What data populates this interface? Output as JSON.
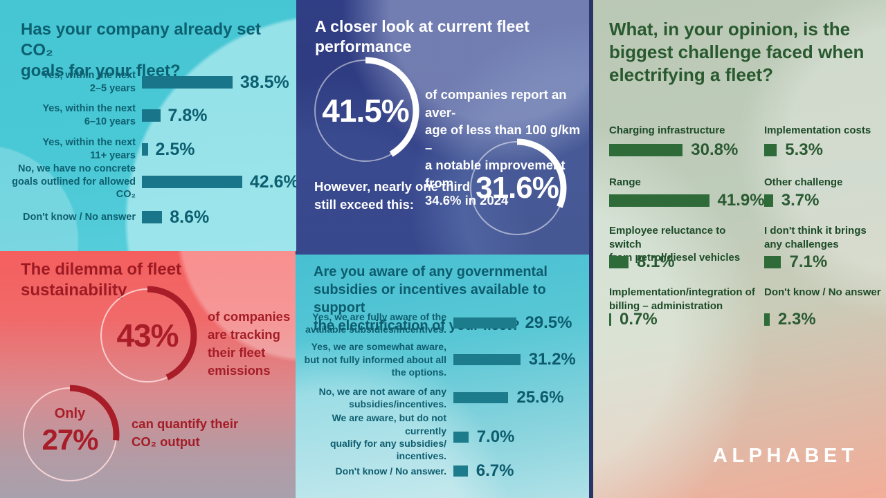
{
  "brand": {
    "logo": "ALPHABET"
  },
  "colors": {
    "cyan_bg": "#47c6d4",
    "dark_blue_bg": "#2d3a7c",
    "red_bg": "#f4605f",
    "green_bg": "#bfccba",
    "salmon_bg": "#f2ad98",
    "teal_bar": "#19768a",
    "teal_text": "#0c5f70",
    "green_bar": "#2e6b38",
    "green_text": "#29592f",
    "red_accent": "#a81d28",
    "white": "#ffffff"
  },
  "chart_data": [
    {
      "id": "co2_goals",
      "type": "bar",
      "orientation": "horizontal",
      "unit": "%",
      "title": "Has your company already set CO₂\ngoals for your fleet?",
      "categories": [
        "Yes, within the next\n2–5 years",
        "Yes, within the next\n6–10 years",
        "Yes, within the next\n11+ years",
        "No, we have no concrete\ngoals outlined for allowed CO₂",
        "Don't know / No answer"
      ],
      "values": [
        38.5,
        7.8,
        2.5,
        42.6,
        8.6
      ],
      "value_labels": [
        "38.5%",
        "7.8%",
        "2.5%",
        "42.6%",
        "8.6%"
      ]
    },
    {
      "id": "fleet_performance",
      "type": "pie",
      "style": "donut-gauges",
      "title": "A closer look at current fleet\nperformance",
      "gauges": [
        {
          "value": 41.5,
          "label": "41.5%",
          "desc": "of companies report an aver-\nage of less than 100 g/km –\na notable improvement from\n34.6% in 2024"
        },
        {
          "value": 31.6,
          "label": "31.6%"
        }
      ],
      "note": "However, nearly one third\nstill exceed this:"
    },
    {
      "id": "challenges",
      "type": "bar",
      "orientation": "horizontal",
      "unit": "%",
      "layout": "two-column",
      "title": "What, in your opinion, is the\nbiggest challenge faced when\nelectrifying a fleet?",
      "categories": [
        "Charging infrastructure",
        "Implementation costs",
        "Range",
        "Other challenge",
        "Employee reluctance to switch\nfrom petrol/diesel vehicles",
        "I don't think it brings\nany challenges",
        "Implementation/integration of\nbilling – administration",
        "Don't know / No answer"
      ],
      "values": [
        30.8,
        5.3,
        41.9,
        3.7,
        8.1,
        7.1,
        0.7,
        2.3
      ],
      "value_labels": [
        "30.8%",
        "5.3%",
        "41.9%",
        "3.7%",
        "8.1%",
        "7.1%",
        "0.7%",
        "2.3%"
      ]
    },
    {
      "id": "dilemma",
      "type": "pie",
      "style": "donut-gauges",
      "title": "The dilemma of fleet\nsustainability",
      "gauges": [
        {
          "value": 43,
          "label": "43%",
          "desc": "of companies\nare tracking\ntheir fleet\nemissions"
        },
        {
          "value": 27,
          "prefix": "Only",
          "label": "27%",
          "desc": "can quantify their\nCO₂ output"
        }
      ]
    },
    {
      "id": "subsidies",
      "type": "bar",
      "orientation": "horizontal",
      "unit": "%",
      "title": "Are you aware of any governmental\nsubsidies or incentives available to support\nthe electrification of your fleet?",
      "categories": [
        "Yes, we are fully aware of the\navailable subsidies/incentives.",
        "Yes, we are somewhat aware,\nbut not fully informed about all\nthe options.",
        "No, we are not aware of any\nsubsidies/incentives.",
        "We are aware, but do not currently\nqualify for any subsidies/\nincentives.",
        "Don't know / No answer."
      ],
      "values": [
        29.5,
        31.2,
        25.6,
        7.0,
        6.7
      ],
      "value_labels": [
        "29.5%",
        "31.2%",
        "25.6%",
        "7.0%",
        "6.7%"
      ]
    }
  ]
}
